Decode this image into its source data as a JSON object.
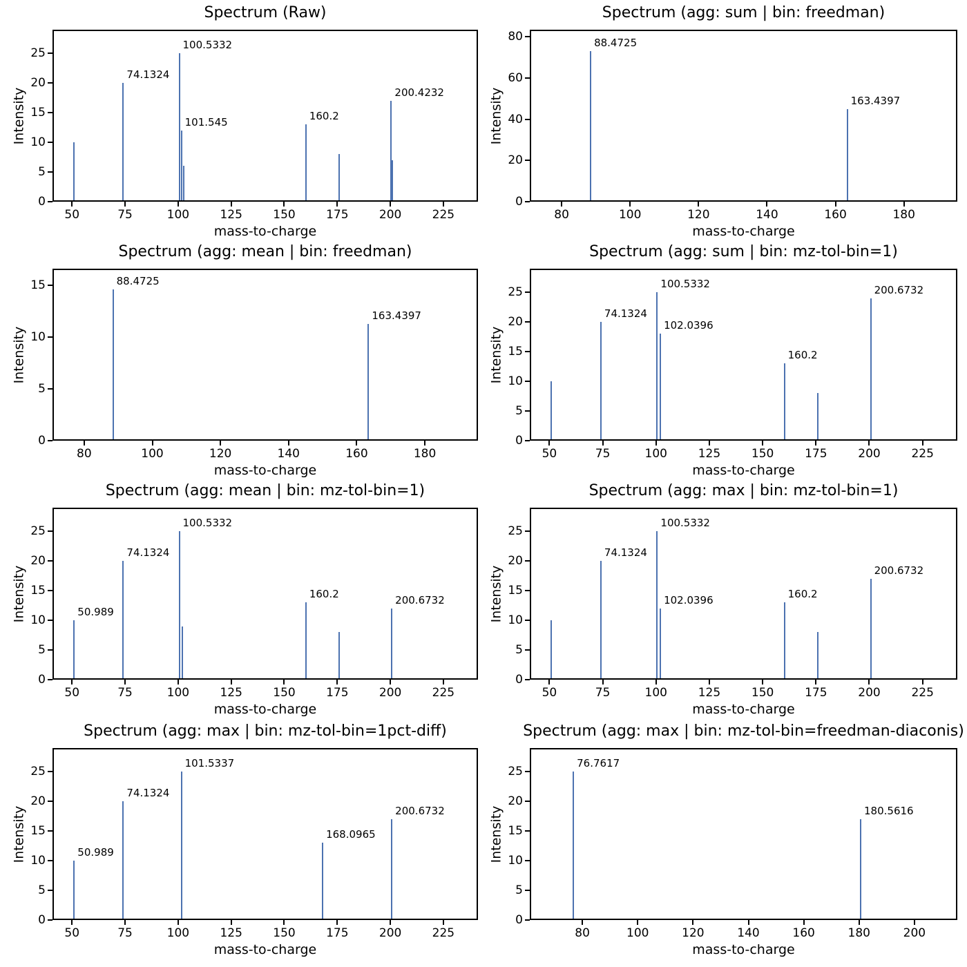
{
  "figure": {
    "background_color": "#ffffff",
    "peak_color": "#4c72b0",
    "spine_color": "#000000"
  },
  "chart_data": [
    {
      "type": "stem",
      "title": "Spectrum (Raw)",
      "xlabel": "mass-to-charge",
      "ylabel": "Intensity",
      "xlim": [
        40.8,
        241.3
      ],
      "ylim": [
        0,
        29
      ],
      "xticks": [
        50,
        75,
        100,
        125,
        150,
        175,
        200,
        225
      ],
      "yticks": [
        0,
        5,
        10,
        15,
        20,
        25
      ],
      "grid": false,
      "peaks": [
        {
          "mz": 50.989,
          "intensity": 10,
          "label": null
        },
        {
          "mz": 74.1324,
          "intensity": 20,
          "label": "74.1324"
        },
        {
          "mz": 100.5332,
          "intensity": 25,
          "label": "100.5332"
        },
        {
          "mz": 101.545,
          "intensity": 12,
          "label": "101.545"
        },
        {
          "mz": 102.5342,
          "intensity": 6,
          "label": null
        },
        {
          "mz": 160.2,
          "intensity": 13,
          "label": "160.2"
        },
        {
          "mz": 175.993,
          "intensity": 8,
          "label": null
        },
        {
          "mz": 200.4232,
          "intensity": 17,
          "label": "200.4232"
        },
        {
          "mz": 200.9232,
          "intensity": 7,
          "label": null
        }
      ]
    },
    {
      "type": "stem",
      "title": "Spectrum (agg: sum | bin: freedman)",
      "xlabel": "mass-to-charge",
      "ylabel": "Intensity",
      "xlim": [
        70.7,
        195.6
      ],
      "ylim": [
        0,
        83.5
      ],
      "xticks": [
        80,
        100,
        120,
        140,
        160,
        180
      ],
      "yticks": [
        0,
        20,
        40,
        60,
        80
      ],
      "grid": false,
      "peaks": [
        {
          "mz": 88.4725,
          "intensity": 73,
          "label": "88.4725"
        },
        {
          "mz": 163.4397,
          "intensity": 45,
          "label": "163.4397"
        }
      ]
    },
    {
      "type": "stem",
      "title": "Spectrum (agg: mean | bin: freedman)",
      "xlabel": "mass-to-charge",
      "ylabel": "Intensity",
      "xlim": [
        70.7,
        195.6
      ],
      "ylim": [
        0,
        16.6
      ],
      "xticks": [
        80,
        100,
        120,
        140,
        160,
        180
      ],
      "yticks": [
        0,
        5,
        10,
        15
      ],
      "grid": false,
      "peaks": [
        {
          "mz": 88.4725,
          "intensity": 14.6,
          "label": "88.4725"
        },
        {
          "mz": 163.4397,
          "intensity": 11.25,
          "label": "163.4397"
        }
      ]
    },
    {
      "type": "stem",
      "title": "Spectrum (agg: sum | bin: mz-tol-bin=1)",
      "xlabel": "mass-to-charge",
      "ylabel": "Intensity",
      "xlim": [
        40.8,
        241.3
      ],
      "ylim": [
        0,
        29
      ],
      "xticks": [
        50,
        75,
        100,
        125,
        150,
        175,
        200,
        225
      ],
      "yticks": [
        0,
        5,
        10,
        15,
        20,
        25
      ],
      "grid": false,
      "peaks": [
        {
          "mz": 50.989,
          "intensity": 10,
          "label": null
        },
        {
          "mz": 74.1324,
          "intensity": 20,
          "label": "74.1324"
        },
        {
          "mz": 100.5332,
          "intensity": 25,
          "label": "100.5332"
        },
        {
          "mz": 102.0396,
          "intensity": 18,
          "label": "102.0396"
        },
        {
          "mz": 160.2,
          "intensity": 13,
          "label": "160.2"
        },
        {
          "mz": 175.993,
          "intensity": 8,
          "label": null
        },
        {
          "mz": 200.6732,
          "intensity": 24,
          "label": "200.6732"
        }
      ]
    },
    {
      "type": "stem",
      "title": "Spectrum (agg: mean | bin: mz-tol-bin=1)",
      "xlabel": "mass-to-charge",
      "ylabel": "Intensity",
      "xlim": [
        40.8,
        241.3
      ],
      "ylim": [
        0,
        29
      ],
      "xticks": [
        50,
        75,
        100,
        125,
        150,
        175,
        200,
        225
      ],
      "yticks": [
        0,
        5,
        10,
        15,
        20,
        25
      ],
      "grid": false,
      "peaks": [
        {
          "mz": 50.989,
          "intensity": 10,
          "label": "50.989"
        },
        {
          "mz": 74.1324,
          "intensity": 20,
          "label": "74.1324"
        },
        {
          "mz": 100.5332,
          "intensity": 25,
          "label": "100.5332"
        },
        {
          "mz": 102.0396,
          "intensity": 9,
          "label": null
        },
        {
          "mz": 160.2,
          "intensity": 13,
          "label": "160.2"
        },
        {
          "mz": 175.993,
          "intensity": 8,
          "label": null
        },
        {
          "mz": 200.6732,
          "intensity": 12,
          "label": "200.6732"
        }
      ]
    },
    {
      "type": "stem",
      "title": "Spectrum (agg: max | bin: mz-tol-bin=1)",
      "xlabel": "mass-to-charge",
      "ylabel": "Intensity",
      "xlim": [
        40.8,
        241.3
      ],
      "ylim": [
        0,
        29
      ],
      "xticks": [
        50,
        75,
        100,
        125,
        150,
        175,
        200,
        225
      ],
      "yticks": [
        0,
        5,
        10,
        15,
        20,
        25
      ],
      "grid": false,
      "peaks": [
        {
          "mz": 50.989,
          "intensity": 10,
          "label": null
        },
        {
          "mz": 74.1324,
          "intensity": 20,
          "label": "74.1324"
        },
        {
          "mz": 100.5332,
          "intensity": 25,
          "label": "100.5332"
        },
        {
          "mz": 102.0396,
          "intensity": 12,
          "label": "102.0396"
        },
        {
          "mz": 160.2,
          "intensity": 13,
          "label": "160.2"
        },
        {
          "mz": 175.993,
          "intensity": 8,
          "label": null
        },
        {
          "mz": 200.6732,
          "intensity": 17,
          "label": "200.6732"
        }
      ]
    },
    {
      "type": "stem",
      "title": "Spectrum (agg: max | bin: mz-tol-bin=1pct-diff)",
      "xlabel": "mass-to-charge",
      "ylabel": "Intensity",
      "xlim": [
        40.8,
        241.3
      ],
      "ylim": [
        0,
        29
      ],
      "xticks": [
        50,
        75,
        100,
        125,
        150,
        175,
        200,
        225
      ],
      "yticks": [
        0,
        5,
        10,
        15,
        20,
        25
      ],
      "grid": false,
      "peaks": [
        {
          "mz": 50.989,
          "intensity": 10,
          "label": "50.989"
        },
        {
          "mz": 74.1324,
          "intensity": 20,
          "label": "74.1324"
        },
        {
          "mz": 101.5337,
          "intensity": 25,
          "label": "101.5337"
        },
        {
          "mz": 168.0965,
          "intensity": 13,
          "label": "168.0965"
        },
        {
          "mz": 200.6732,
          "intensity": 17,
          "label": "200.6732"
        }
      ]
    },
    {
      "type": "stem",
      "title": "Spectrum (agg: max | bin: mz-tol-bin=freedman-diaconis)",
      "xlabel": "mass-to-charge",
      "ylabel": "Intensity",
      "xlim": [
        61.0,
        215.5
      ],
      "ylim": [
        0,
        29
      ],
      "xticks": [
        80,
        100,
        120,
        140,
        160,
        180,
        200
      ],
      "yticks": [
        0,
        5,
        10,
        15,
        20,
        25
      ],
      "grid": false,
      "peaks": [
        {
          "mz": 76.7617,
          "intensity": 25,
          "label": "76.7617"
        },
        {
          "mz": 180.5616,
          "intensity": 17,
          "label": "180.5616"
        }
      ]
    }
  ]
}
